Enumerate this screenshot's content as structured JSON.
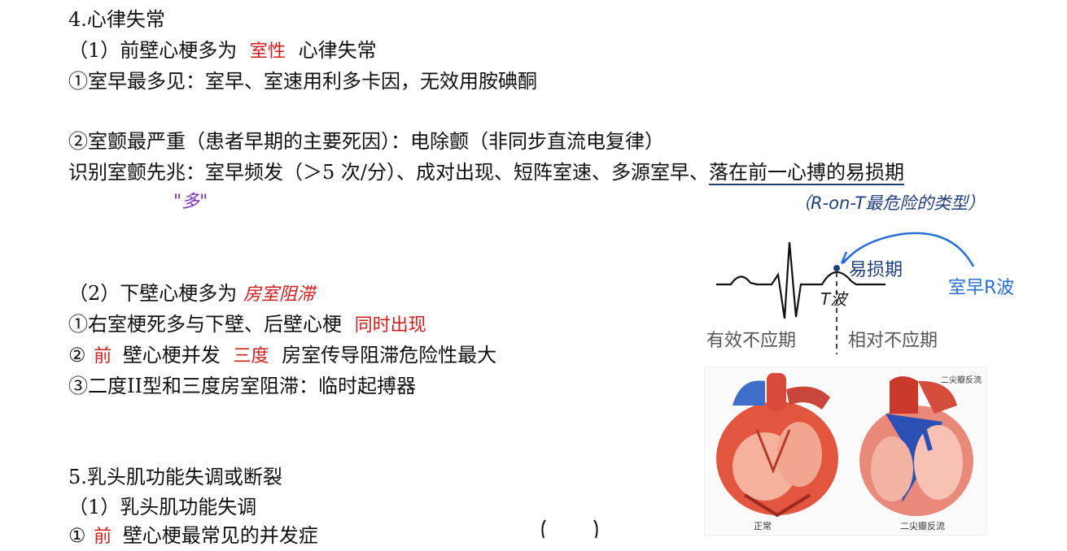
{
  "section4": {
    "title": "4.心律失常",
    "sub1": {
      "prefix": "（1）前壁心梗多为",
      "highlight": "室性",
      "suffix": "心律失常"
    },
    "item1": "①室早最多见：室早、室速用利多卡因，无效用胺碘酮",
    "item2": "②室颤最严重（患者早期的主要死因）：电除颤（非同步直流电复律）",
    "identify": {
      "prefix": "识别室颤先兆：室早频发（＞5 次/分）、成对出现、短阵室速、多源室早、",
      "underlined": "落在前一心搏的易损期"
    },
    "annotation_duo": "\"多\"",
    "annotation_ront": "（R-on-T最危险的类型）",
    "sub2": {
      "prefix": "（2）下壁心梗多为",
      "highlight": "房室阻滞"
    },
    "item_right": {
      "prefix": "①右室梗死多与下壁、后壁心梗",
      "highlight": "同时出现"
    },
    "item_front": {
      "num": "②",
      "highlight1": "前",
      "mid": "壁心梗并发",
      "highlight2": "三度",
      "suffix": "房室传导阻滞危险性最大"
    },
    "item3": "③二度II型和三度房室阻滞：临时起搏器"
  },
  "section5": {
    "title": "5.乳头肌功能失调或断裂",
    "sub1": "（1）乳头肌功能失调",
    "item1": {
      "num": "①",
      "highlight": "前",
      "suffix": "壁心梗最常见的并发症"
    }
  },
  "ecg_diagram": {
    "vulnerable_label": "易损期",
    "pvc_label": "室早R波",
    "t_wave_label": "T波",
    "effective_refractory": "有效不应期",
    "relative_refractory": "相对不应期"
  },
  "heart_figure": {
    "normal_label": "正常",
    "regurg_label": "二尖瓣反流",
    "regurg_title": "二尖瓣反流"
  },
  "colors": {
    "red": "#d21d1d",
    "blue": "#2a6fd6",
    "navy": "#1f3f7a",
    "purple": "#7a2fbf"
  }
}
